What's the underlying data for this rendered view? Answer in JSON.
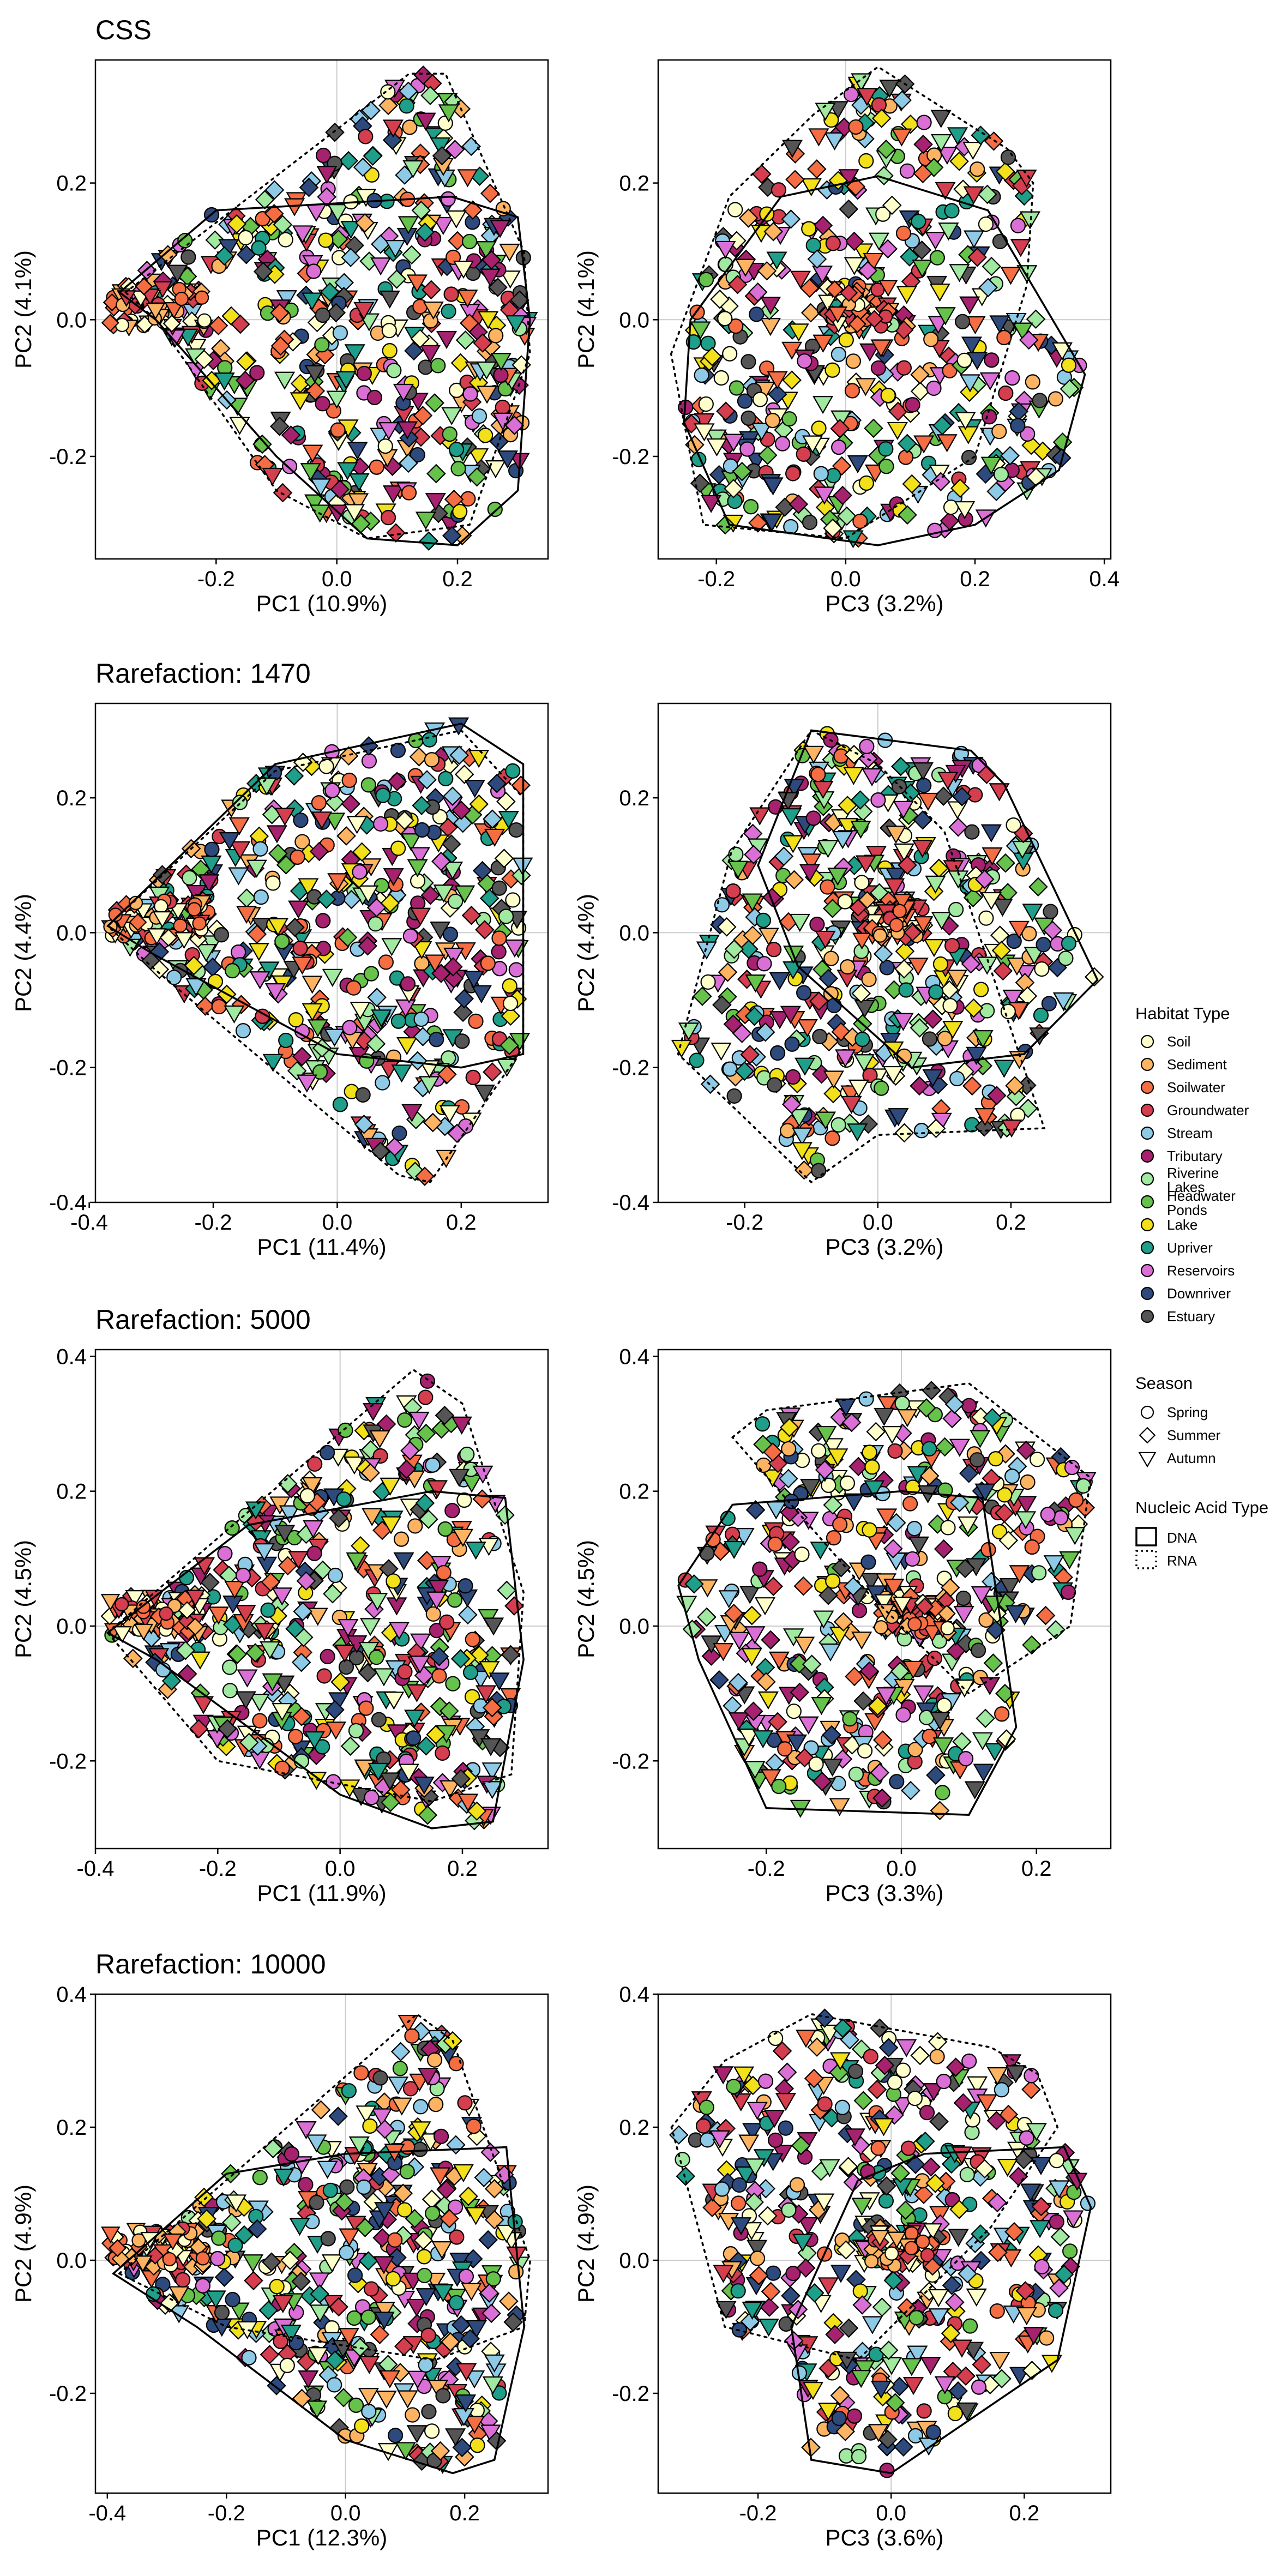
{
  "figure": {
    "legend": {
      "habitat_title": "Habitat Type",
      "season_title": "Season",
      "nucleic_title": "Nucleic Acid Type"
    }
  },
  "habitats": [
    {
      "label": "Soil",
      "color": "#FFFFCC"
    },
    {
      "label": "Sediment",
      "color": "#FDB462"
    },
    {
      "label": "Soilwater",
      "color": "#F46D43"
    },
    {
      "label": "Groundwater",
      "color": "#D53E4F"
    },
    {
      "label": "Stream",
      "color": "#8ECAE6"
    },
    {
      "label": "Tributary",
      "color": "#A6226E"
    },
    {
      "label": "Riverine Lakes",
      "color": "#A1E8A0"
    },
    {
      "label": "Headwater Ponds",
      "color": "#66C24A"
    },
    {
      "label": "Lake",
      "color": "#F2E01A"
    },
    {
      "label": "Upriver",
      "color": "#1F9E89"
    },
    {
      "label": "Reservoirs",
      "color": "#DA70D6"
    },
    {
      "label": "Downriver",
      "color": "#2E4A7D"
    },
    {
      "label": "Estuary",
      "color": "#555555"
    }
  ],
  "seasons": [
    {
      "label": "Spring",
      "shape": "circle"
    },
    {
      "label": "Summer",
      "shape": "diamond"
    },
    {
      "label": "Autumn",
      "shape": "triangle-down"
    }
  ],
  "nucleic": [
    {
      "label": "DNA",
      "line": "solid"
    },
    {
      "label": "RNA",
      "line": "dotted"
    }
  ],
  "chart_data": [
    {
      "type": "scatter",
      "row_title": "CSS",
      "xlabel": "PC1 (10.9%)",
      "ylabel": "PC2 (4.1%)",
      "xlim": [
        -0.4,
        0.35
      ],
      "ylim": [
        -0.35,
        0.38
      ],
      "xticks": [
        -0.2,
        0.0,
        0.2
      ],
      "yticks": [
        -0.2,
        0.0,
        0.2
      ],
      "ytick_labels": [
        "-0.2",
        "0.0",
        "0.2"
      ],
      "xtick_labels": [
        "-0.2",
        "0.0",
        "0.2"
      ],
      "grid": true,
      "hull_dna": [
        [
          -0.36,
          0.04
        ],
        [
          -0.2,
          0.16
        ],
        [
          0.19,
          0.18
        ],
        [
          0.3,
          0.15
        ],
        [
          0.32,
          0.0
        ],
        [
          0.3,
          -0.25
        ],
        [
          0.2,
          -0.33
        ],
        [
          0.05,
          -0.32
        ],
        [
          -0.1,
          -0.2
        ],
        [
          -0.3,
          0.0
        ]
      ],
      "hull_rna": [
        [
          -0.35,
          0.04
        ],
        [
          0.12,
          0.36
        ],
        [
          0.18,
          0.36
        ],
        [
          0.31,
          0.1
        ],
        [
          0.32,
          -0.05
        ],
        [
          0.22,
          -0.3
        ],
        [
          0.05,
          -0.32
        ],
        [
          -0.1,
          -0.25
        ],
        [
          -0.3,
          0.0
        ]
      ]
    },
    {
      "type": "scatter",
      "row_title": "",
      "xlabel": "PC3 (3.2%)",
      "ylabel": "PC2 (4.1%)",
      "xlim": [
        -0.29,
        0.41
      ],
      "ylim": [
        -0.35,
        0.38
      ],
      "xticks": [
        -0.2,
        0.0,
        0.2,
        0.4
      ],
      "yticks": [
        -0.2,
        0.0,
        0.2
      ],
      "ytick_labels": [
        "-0.2",
        "0.0",
        "0.2"
      ],
      "xtick_labels": [
        "-0.2",
        "0.0",
        "0.2",
        "0.4"
      ],
      "grid": true,
      "hull_dna": [
        [
          -0.24,
          0.0
        ],
        [
          -0.1,
          0.18
        ],
        [
          0.05,
          0.21
        ],
        [
          0.22,
          0.16
        ],
        [
          0.37,
          -0.08
        ],
        [
          0.33,
          -0.22
        ],
        [
          0.2,
          -0.3
        ],
        [
          0.05,
          -0.33
        ],
        [
          -0.18,
          -0.3
        ],
        [
          -0.25,
          -0.15
        ]
      ],
      "hull_rna": [
        [
          -0.27,
          -0.05
        ],
        [
          -0.18,
          0.18
        ],
        [
          -0.05,
          0.3
        ],
        [
          0.05,
          0.37
        ],
        [
          0.25,
          0.25
        ],
        [
          0.29,
          0.2
        ],
        [
          0.28,
          0.05
        ],
        [
          0.2,
          -0.2
        ],
        [
          0.0,
          -0.32
        ],
        [
          -0.22,
          -0.3
        ]
      ]
    },
    {
      "type": "scatter",
      "row_title": "Rarefaction:  1470",
      "xlabel": "PC1 (11.4%)",
      "ylabel": "PC2 (4.4%)",
      "xlim": [
        -0.39,
        0.34
      ],
      "ylim": [
        -0.4,
        0.34
      ],
      "xticks": [
        -0.4,
        -0.2,
        0.0,
        0.2
      ],
      "yticks": [
        -0.4,
        -0.2,
        0.0,
        0.2
      ],
      "ytick_labels": [
        "-0.4",
        "-0.2",
        "0.0",
        "0.2"
      ],
      "xtick_labels": [
        "-0.4",
        "-0.2",
        "0.0",
        "0.2"
      ],
      "grid": true,
      "hull_dna": [
        [
          -0.37,
          0.01
        ],
        [
          -0.1,
          0.25
        ],
        [
          0.2,
          0.31
        ],
        [
          0.3,
          0.25
        ],
        [
          0.3,
          -0.18
        ],
        [
          0.2,
          -0.2
        ],
        [
          0.0,
          -0.18
        ],
        [
          -0.3,
          -0.03
        ]
      ],
      "hull_rna": [
        [
          -0.37,
          0.01
        ],
        [
          -0.1,
          0.24
        ],
        [
          0.2,
          0.3
        ],
        [
          0.3,
          0.2
        ],
        [
          0.3,
          -0.17
        ],
        [
          0.15,
          -0.37
        ],
        [
          0.1,
          -0.36
        ],
        [
          -0.3,
          -0.05
        ]
      ]
    },
    {
      "type": "scatter",
      "row_title": "",
      "xlabel": "PC3 (3.2%)",
      "ylabel": "PC2 (4.4%)",
      "xlim": [
        -0.33,
        0.35
      ],
      "ylim": [
        -0.4,
        0.34
      ],
      "xticks": [
        -0.2,
        0.0,
        0.2
      ],
      "yticks": [
        -0.4,
        -0.2,
        0.0,
        0.2
      ],
      "ytick_labels": [
        "-0.4",
        "-0.2",
        "0.0",
        "0.2"
      ],
      "xtick_labels": [
        "-0.2",
        "0.0",
        "0.2"
      ],
      "grid": true,
      "hull_dna": [
        [
          -0.18,
          0.1
        ],
        [
          -0.1,
          0.3
        ],
        [
          0.14,
          0.27
        ],
        [
          0.19,
          0.22
        ],
        [
          0.33,
          -0.07
        ],
        [
          0.22,
          -0.18
        ],
        [
          0.05,
          -0.2
        ],
        [
          -0.12,
          -0.05
        ]
      ],
      "hull_rna": [
        [
          -0.3,
          -0.18
        ],
        [
          -0.22,
          0.12
        ],
        [
          -0.1,
          0.3
        ],
        [
          0.0,
          0.25
        ],
        [
          0.1,
          0.15
        ],
        [
          0.25,
          -0.29
        ],
        [
          0.0,
          -0.3
        ],
        [
          -0.1,
          -0.37
        ]
      ]
    },
    {
      "type": "scatter",
      "row_title": "Rarefaction:  5000",
      "xlabel": "PC1 (11.9%)",
      "ylabel": "PC2 (4.5%)",
      "xlim": [
        -0.4,
        0.34
      ],
      "ylim": [
        -0.33,
        0.41
      ],
      "xticks": [
        -0.4,
        -0.2,
        0.0,
        0.2
      ],
      "yticks": [
        -0.2,
        0.0,
        0.2,
        0.4
      ],
      "ytick_labels": [
        "-0.2",
        "0.0",
        "0.2",
        "0.4"
      ],
      "xtick_labels": [
        "-0.4",
        "-0.2",
        "0.0",
        "0.2"
      ],
      "grid": true,
      "hull_dna": [
        [
          -0.38,
          -0.01
        ],
        [
          -0.15,
          0.15
        ],
        [
          0.15,
          0.2
        ],
        [
          0.27,
          0.19
        ],
        [
          0.3,
          -0.05
        ],
        [
          0.25,
          -0.29
        ],
        [
          0.15,
          -0.3
        ],
        [
          0.0,
          -0.25
        ],
        [
          -0.3,
          -0.05
        ]
      ],
      "hull_rna": [
        [
          -0.38,
          -0.01
        ],
        [
          0.12,
          0.38
        ],
        [
          0.2,
          0.33
        ],
        [
          0.3,
          0.05
        ],
        [
          0.28,
          -0.22
        ],
        [
          0.15,
          -0.26
        ],
        [
          -0.2,
          -0.2
        ]
      ]
    },
    {
      "type": "scatter",
      "row_title": "",
      "xlabel": "PC3 (3.3%)",
      "ylabel": "PC2 (4.5%)",
      "xlim": [
        -0.36,
        0.31
      ],
      "ylim": [
        -0.33,
        0.41
      ],
      "xticks": [
        -0.2,
        0.0,
        0.2
      ],
      "yticks": [
        -0.2,
        0.0,
        0.2,
        0.4
      ],
      "ytick_labels": [
        "-0.2",
        "0.0",
        "0.2",
        "0.4"
      ],
      "xtick_labels": [
        "-0.2",
        "0.0",
        "0.2"
      ],
      "grid": true,
      "hull_dna": [
        [
          -0.33,
          0.06
        ],
        [
          -0.25,
          0.18
        ],
        [
          0.0,
          0.2
        ],
        [
          0.12,
          0.19
        ],
        [
          0.17,
          -0.15
        ],
        [
          0.1,
          -0.28
        ],
        [
          -0.2,
          -0.27
        ],
        [
          -0.3,
          -0.05
        ]
      ],
      "hull_rna": [
        [
          -0.25,
          0.28
        ],
        [
          -0.2,
          0.32
        ],
        [
          0.1,
          0.36
        ],
        [
          0.28,
          0.22
        ],
        [
          0.25,
          0.0
        ],
        [
          0.1,
          -0.1
        ],
        [
          -0.05,
          0.05
        ]
      ]
    },
    {
      "type": "scatter",
      "row_title": "Rarefaction:  10000",
      "xlabel": "PC1 (12.3%)",
      "ylabel": "PC2 (4.9%)",
      "xlim": [
        -0.42,
        0.34
      ],
      "ylim": [
        -0.35,
        0.4
      ],
      "xticks": [
        -0.4,
        -0.2,
        0.0,
        0.2
      ],
      "yticks": [
        -0.2,
        0.0,
        0.2,
        0.4
      ],
      "ytick_labels": [
        "-0.2",
        "0.0",
        "0.2",
        "0.4"
      ],
      "xtick_labels": [
        "-0.4",
        "-0.2",
        "0.0",
        "0.2"
      ],
      "grid": true,
      "hull_dna": [
        [
          -0.39,
          -0.02
        ],
        [
          -0.2,
          0.13
        ],
        [
          0.0,
          0.16
        ],
        [
          0.27,
          0.17
        ],
        [
          0.3,
          -0.1
        ],
        [
          0.25,
          -0.3
        ],
        [
          0.18,
          -0.32
        ],
        [
          0.0,
          -0.27
        ],
        [
          -0.25,
          -0.1
        ]
      ],
      "hull_rna": [
        [
          -0.38,
          -0.02
        ],
        [
          0.12,
          0.37
        ],
        [
          0.18,
          0.33
        ],
        [
          0.31,
          0.0
        ],
        [
          0.3,
          -0.1
        ],
        [
          0.15,
          -0.15
        ],
        [
          -0.2,
          -0.1
        ]
      ]
    },
    {
      "type": "scatter",
      "row_title": "",
      "xlabel": "PC3 (3.6%)",
      "ylabel": "PC2 (4.9%)",
      "xlim": [
        -0.35,
        0.33
      ],
      "ylim": [
        -0.35,
        0.4
      ],
      "xticks": [
        -0.2,
        0.0,
        0.2
      ],
      "yticks": [
        -0.2,
        0.0,
        0.2,
        0.4
      ],
      "ytick_labels": [
        "-0.2",
        "0.0",
        "0.2",
        "0.4"
      ],
      "xtick_labels": [
        "-0.2",
        "0.0",
        "0.2"
      ],
      "grid": true,
      "hull_dna": [
        [
          -0.15,
          -0.1
        ],
        [
          -0.05,
          0.12
        ],
        [
          0.05,
          0.16
        ],
        [
          0.26,
          0.17
        ],
        [
          0.3,
          0.08
        ],
        [
          0.25,
          -0.15
        ],
        [
          0.0,
          -0.32
        ],
        [
          -0.12,
          -0.3
        ]
      ],
      "hull_rna": [
        [
          -0.33,
          0.2
        ],
        [
          -0.25,
          0.3
        ],
        [
          -0.12,
          0.37
        ],
        [
          0.15,
          0.32
        ],
        [
          0.22,
          0.28
        ],
        [
          0.25,
          0.2
        ],
        [
          0.15,
          0.05
        ],
        [
          -0.05,
          -0.15
        ],
        [
          -0.25,
          -0.1
        ]
      ]
    }
  ]
}
